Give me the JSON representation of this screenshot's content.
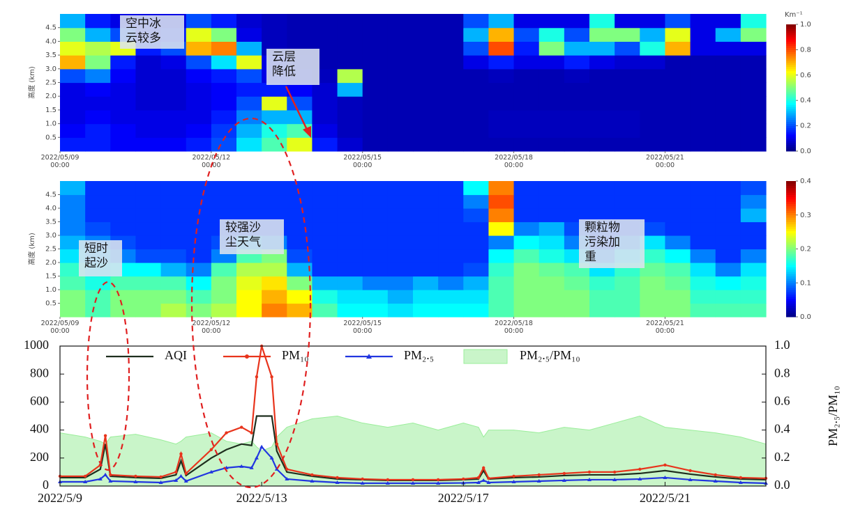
{
  "chart_data": [
    {
      "type": "heatmap",
      "ylabel": "高度 (km)",
      "colormap": "jet",
      "x": [
        9.25,
        9.75,
        10.25,
        10.75,
        11.25,
        11.75,
        12.25,
        12.75,
        13.25,
        13.75,
        14.25,
        14.75,
        15.25,
        15.75,
        16.25,
        16.75,
        17.25,
        17.75,
        18.25,
        18.75,
        19.25,
        19.75,
        20.25,
        20.75,
        21.25,
        21.75,
        22.25,
        22.75
      ],
      "y": [
        0.25,
        0.75,
        1.25,
        1.75,
        2.25,
        2.75,
        3.25,
        3.75,
        4.25,
        4.75
      ],
      "values": [
        [
          0.15,
          0.15,
          0.12,
          0.12,
          0.12,
          0.15,
          0.2,
          0.35,
          0.45,
          0.6,
          0.15,
          0.08,
          0.05,
          0.05,
          0.05,
          0.05,
          0.05,
          0.05,
          0.05,
          0.05,
          0.05,
          0.05,
          0.05,
          0.05,
          0.05,
          0.05,
          0.05,
          0.05
        ],
        [
          0.12,
          0.15,
          0.12,
          0.1,
          0.1,
          0.12,
          0.18,
          0.3,
          0.4,
          0.45,
          0.1,
          0.06,
          0.05,
          0.05,
          0.05,
          0.05,
          0.05,
          0.06,
          0.06,
          0.06,
          0.06,
          0.06,
          0.06,
          0.05,
          0.05,
          0.05,
          0.05,
          0.05
        ],
        [
          0.1,
          0.12,
          0.1,
          0.1,
          0.1,
          0.1,
          0.15,
          0.25,
          0.3,
          0.3,
          0.08,
          0.06,
          0.05,
          0.05,
          0.05,
          0.05,
          0.05,
          0.06,
          0.06,
          0.06,
          0.06,
          0.06,
          0.06,
          0.05,
          0.05,
          0.05,
          0.05,
          0.05
        ],
        [
          0.1,
          0.1,
          0.1,
          0.08,
          0.08,
          0.1,
          0.12,
          0.2,
          0.6,
          0.2,
          0.08,
          0.06,
          0.05,
          0.05,
          0.05,
          0.05,
          0.05,
          0.05,
          0.05,
          0.05,
          0.05,
          0.05,
          0.05,
          0.05,
          0.05,
          0.05,
          0.05,
          0.05
        ],
        [
          0.1,
          0.12,
          0.1,
          0.08,
          0.08,
          0.1,
          0.12,
          0.15,
          0.15,
          0.12,
          0.08,
          0.3,
          0.05,
          0.05,
          0.05,
          0.05,
          0.05,
          0.05,
          0.05,
          0.05,
          0.05,
          0.05,
          0.05,
          0.05,
          0.05,
          0.05,
          0.05,
          0.05
        ],
        [
          0.2,
          0.25,
          0.12,
          0.08,
          0.08,
          0.12,
          0.15,
          0.2,
          0.1,
          0.08,
          0.06,
          0.55,
          0.05,
          0.05,
          0.05,
          0.05,
          0.05,
          0.06,
          0.05,
          0.05,
          0.06,
          0.05,
          0.05,
          0.05,
          0.05,
          0.05,
          0.05,
          0.05
        ],
        [
          0.7,
          0.5,
          0.15,
          0.08,
          0.1,
          0.2,
          0.35,
          0.6,
          0.1,
          0.06,
          0.05,
          0.05,
          0.05,
          0.05,
          0.05,
          0.05,
          0.1,
          0.15,
          0.1,
          0.1,
          0.15,
          0.1,
          0.08,
          0.08,
          0.05,
          0.05,
          0.05,
          0.05
        ],
        [
          0.6,
          0.55,
          0.6,
          0.15,
          0.2,
          0.7,
          0.75,
          0.3,
          0.06,
          0.05,
          0.05,
          0.05,
          0.05,
          0.05,
          0.05,
          0.05,
          0.2,
          0.8,
          0.15,
          0.5,
          0.3,
          0.3,
          0.2,
          0.4,
          0.7,
          0.1,
          0.1,
          0.1
        ],
        [
          0.5,
          0.3,
          0.2,
          0.1,
          0.15,
          0.6,
          0.5,
          0.1,
          0.06,
          0.05,
          0.05,
          0.05,
          0.05,
          0.05,
          0.05,
          0.05,
          0.3,
          0.7,
          0.2,
          0.4,
          0.2,
          0.5,
          0.5,
          0.3,
          0.6,
          0.1,
          0.3,
          0.5
        ],
        [
          0.3,
          0.15,
          0.1,
          0.1,
          0.1,
          0.2,
          0.15,
          0.08,
          0.06,
          0.05,
          0.05,
          0.05,
          0.05,
          0.05,
          0.05,
          0.05,
          0.2,
          0.3,
          0.1,
          0.1,
          0.1,
          0.4,
          0.1,
          0.1,
          0.2,
          0.1,
          0.1,
          0.4
        ]
      ],
      "xlim": [
        9,
        23
      ],
      "ylim": [
        0,
        5
      ],
      "xticks": [
        {
          "value": 9,
          "label": "2022/05/09\n00:00"
        },
        {
          "value": 12,
          "label": "2022/05/12\n00:00"
        },
        {
          "value": 15,
          "label": "2022/05/15\n00:00"
        },
        {
          "value": 18,
          "label": "2022/05/18\n00:00"
        },
        {
          "value": 21,
          "label": "2022/05/21\n00:00"
        }
      ],
      "yticks": [
        0.5,
        {
          "value": 1,
          "label": "1.0"
        },
        1.5,
        {
          "value": 2,
          "label": "2.0"
        },
        2.5,
        {
          "value": 3,
          "label": "3.0"
        },
        3.5,
        {
          "value": 4,
          "label": "4.0"
        },
        4.5
      ],
      "colorbar": {
        "unit": "Km⁻¹",
        "lim": [
          0,
          1
        ],
        "ticks": [
          {
            "value": 0,
            "label": "0.0"
          },
          0.2,
          0.4,
          0.6,
          0.8,
          {
            "value": 1,
            "label": "1.0"
          }
        ]
      },
      "annotations": [
        "空中冰\n云较多",
        "云层\n降低"
      ]
    },
    {
      "type": "heatmap",
      "ylabel": "高度 (km)",
      "colormap": "jet",
      "x": [
        9.25,
        9.75,
        10.25,
        10.75,
        11.25,
        11.75,
        12.25,
        12.75,
        13.25,
        13.75,
        14.25,
        14.75,
        15.25,
        15.75,
        16.25,
        16.75,
        17.25,
        17.75,
        18.25,
        18.75,
        19.25,
        19.75,
        20.25,
        20.75,
        21.25,
        21.75,
        22.25,
        22.75
      ],
      "y": [
        0.25,
        0.75,
        1.25,
        1.75,
        2.25,
        2.75,
        3.25,
        3.75,
        4.25,
        4.75
      ],
      "values": [
        [
          0.2,
          0.18,
          0.2,
          0.2,
          0.22,
          0.2,
          0.22,
          0.25,
          0.3,
          0.28,
          0.18,
          0.15,
          0.15,
          0.14,
          0.15,
          0.15,
          0.15,
          0.18,
          0.2,
          0.2,
          0.2,
          0.18,
          0.18,
          0.2,
          0.2,
          0.18,
          0.18,
          0.18
        ],
        [
          0.2,
          0.18,
          0.2,
          0.2,
          0.2,
          0.18,
          0.2,
          0.25,
          0.28,
          0.25,
          0.16,
          0.14,
          0.14,
          0.12,
          0.14,
          0.14,
          0.14,
          0.18,
          0.2,
          0.2,
          0.2,
          0.18,
          0.18,
          0.2,
          0.2,
          0.17,
          0.17,
          0.17
        ],
        [
          0.18,
          0.16,
          0.18,
          0.18,
          0.18,
          0.15,
          0.2,
          0.24,
          0.26,
          0.2,
          0.12,
          0.12,
          0.1,
          0.1,
          0.12,
          0.1,
          0.12,
          0.18,
          0.2,
          0.2,
          0.19,
          0.17,
          0.18,
          0.2,
          0.19,
          0.16,
          0.15,
          0.16
        ],
        [
          0.17,
          0.14,
          0.15,
          0.15,
          0.12,
          0.1,
          0.18,
          0.22,
          0.22,
          0.12,
          0.07,
          0.07,
          0.07,
          0.07,
          0.07,
          0.07,
          0.08,
          0.17,
          0.2,
          0.19,
          0.18,
          0.14,
          0.17,
          0.19,
          0.18,
          0.14,
          0.1,
          0.14
        ],
        [
          0.14,
          0.12,
          0.1,
          0.08,
          0.08,
          0.07,
          0.1,
          0.18,
          0.2,
          0.08,
          0.07,
          0.07,
          0.07,
          0.07,
          0.07,
          0.07,
          0.07,
          0.15,
          0.18,
          0.16,
          0.14,
          0.1,
          0.14,
          0.17,
          0.15,
          0.1,
          0.07,
          0.1
        ],
        [
          0.12,
          0.1,
          0.08,
          0.07,
          0.07,
          0.07,
          0.08,
          0.12,
          0.1,
          0.07,
          0.07,
          0.07,
          0.07,
          0.07,
          0.07,
          0.07,
          0.07,
          0.1,
          0.15,
          0.14,
          0.1,
          0.07,
          0.1,
          0.14,
          0.1,
          0.07,
          0.07,
          0.07
        ],
        [
          0.1,
          0.08,
          0.07,
          0.07,
          0.07,
          0.07,
          0.07,
          0.07,
          0.07,
          0.07,
          0.07,
          0.07,
          0.07,
          0.07,
          0.07,
          0.07,
          0.07,
          0.25,
          0.1,
          0.12,
          0.08,
          0.07,
          0.07,
          0.08,
          0.07,
          0.07,
          0.07,
          0.07
        ],
        [
          0.1,
          0.07,
          0.07,
          0.07,
          0.07,
          0.07,
          0.07,
          0.07,
          0.07,
          0.07,
          0.07,
          0.07,
          0.07,
          0.07,
          0.07,
          0.07,
          0.08,
          0.3,
          0.07,
          0.07,
          0.07,
          0.07,
          0.07,
          0.07,
          0.07,
          0.07,
          0.07,
          0.12
        ],
        [
          0.1,
          0.07,
          0.07,
          0.07,
          0.07,
          0.07,
          0.07,
          0.07,
          0.07,
          0.07,
          0.07,
          0.07,
          0.07,
          0.07,
          0.07,
          0.07,
          0.1,
          0.32,
          0.07,
          0.07,
          0.07,
          0.07,
          0.07,
          0.07,
          0.07,
          0.07,
          0.07,
          0.1
        ],
        [
          0.12,
          0.07,
          0.07,
          0.07,
          0.07,
          0.07,
          0.07,
          0.07,
          0.07,
          0.07,
          0.07,
          0.07,
          0.07,
          0.07,
          0.07,
          0.07,
          0.15,
          0.3,
          0.07,
          0.07,
          0.07,
          0.07,
          0.07,
          0.07,
          0.07,
          0.07,
          0.07,
          0.08
        ]
      ],
      "xlim": [
        9,
        23
      ],
      "ylim": [
        0,
        5
      ],
      "xticks": [
        {
          "value": 9,
          "label": "2022/05/09\n00:00"
        },
        {
          "value": 12,
          "label": "2022/05/12\n00:00"
        },
        {
          "value": 15,
          "label": "2022/05/15\n00:00"
        },
        {
          "value": 18,
          "label": "2022/05/18\n00:00"
        },
        {
          "value": 21,
          "label": "2022/05/21\n00:00"
        }
      ],
      "yticks": [
        0.5,
        {
          "value": 1,
          "label": "1.0"
        },
        1.5,
        {
          "value": 2,
          "label": "2.0"
        },
        2.5,
        {
          "value": 3,
          "label": "3.0"
        },
        3.5,
        {
          "value": 4,
          "label": "4.0"
        },
        4.5
      ],
      "colorbar": {
        "lim": [
          0,
          0.4
        ],
        "ticks": [
          {
            "value": 0,
            "label": "0.0"
          },
          0.1,
          0.2,
          0.3,
          0.4
        ]
      },
      "annotations": [
        "短时\n起沙",
        "较强沙\n尘天气",
        "颗粒物\n污染加\n重"
      ]
    },
    {
      "type": "line",
      "y2label": "PM₂.₅/PM₁₀",
      "x": [
        9,
        9.5,
        9.8,
        9.9,
        10,
        10.5,
        11,
        11.3,
        11.4,
        11.5,
        12,
        12.3,
        12.6,
        12.8,
        12.9,
        13,
        13.2,
        13.3,
        13.5,
        14,
        14.5,
        15,
        15.5,
        16,
        16.5,
        17,
        17.3,
        17.4,
        17.5,
        18,
        18.5,
        19,
        19.5,
        20,
        20.5,
        21,
        21.5,
        22,
        22.5,
        23
      ],
      "series": [
        {
          "name": "PM₂.₅/PM₁₀",
          "color": "#c9f5c9",
          "style": "area",
          "axis": "y2",
          "values": [
            0.38,
            0.35,
            0.32,
            0.3,
            0.35,
            0.37,
            0.33,
            0.3,
            0.32,
            0.35,
            0.38,
            0.32,
            0.3,
            0.32,
            0.28,
            0.25,
            0.28,
            0.35,
            0.42,
            0.48,
            0.5,
            0.45,
            0.42,
            0.45,
            0.4,
            0.45,
            0.42,
            0.35,
            0.4,
            0.4,
            0.38,
            0.42,
            0.4,
            0.45,
            0.5,
            0.42,
            0.4,
            0.38,
            0.35,
            0.3
          ]
        },
        {
          "name": "AQI",
          "color": "#1e2e1e",
          "style": "line",
          "values": [
            60,
            60,
            120,
            300,
            70,
            60,
            55,
            80,
            180,
            75,
            200,
            260,
            300,
            290,
            500,
            500,
            500,
            250,
            100,
            70,
            50,
            45,
            40,
            40,
            40,
            45,
            50,
            110,
            50,
            60,
            65,
            75,
            80,
            80,
            90,
            110,
            85,
            65,
            50,
            45
          ]
        },
        {
          "name": "PM₁₀",
          "color": "#e8341c",
          "style": "line",
          "marker": "circle",
          "values": [
            70,
            70,
            150,
            360,
            80,
            70,
            65,
            100,
            230,
            90,
            260,
            380,
            420,
            380,
            780,
            1000,
            780,
            300,
            120,
            80,
            60,
            50,
            45,
            45,
            45,
            50,
            60,
            130,
            55,
            70,
            80,
            90,
            100,
            100,
            120,
            150,
            110,
            80,
            60,
            55
          ]
        },
        {
          "name": "PM₂.₅",
          "color": "#2136e0",
          "style": "line",
          "marker": "triangle",
          "values": [
            30,
            30,
            50,
            80,
            35,
            30,
            25,
            40,
            70,
            35,
            100,
            130,
            140,
            130,
            200,
            280,
            200,
            120,
            50,
            35,
            25,
            20,
            20,
            20,
            20,
            22,
            25,
            40,
            25,
            30,
            35,
            40,
            45,
            45,
            50,
            60,
            45,
            35,
            25,
            20
          ]
        }
      ],
      "xlim": [
        9,
        23
      ],
      "ylim": [
        0,
        1000
      ],
      "y2lim": [
        0,
        1
      ],
      "xticks": [
        {
          "value": 9,
          "label": "2022/5/9"
        },
        {
          "value": 13,
          "label": "2022/5/13"
        },
        {
          "value": 17,
          "label": "2022/5/17"
        },
        {
          "value": 21,
          "label": "2022/5/21"
        }
      ],
      "yticks": [
        0,
        200,
        400,
        600,
        800,
        1000
      ],
      "y2ticks": [
        {
          "value": 0,
          "label": "0.0"
        },
        0.2,
        0.4,
        0.6,
        0.8,
        {
          "value": 1,
          "label": "1.0"
        }
      ]
    }
  ]
}
